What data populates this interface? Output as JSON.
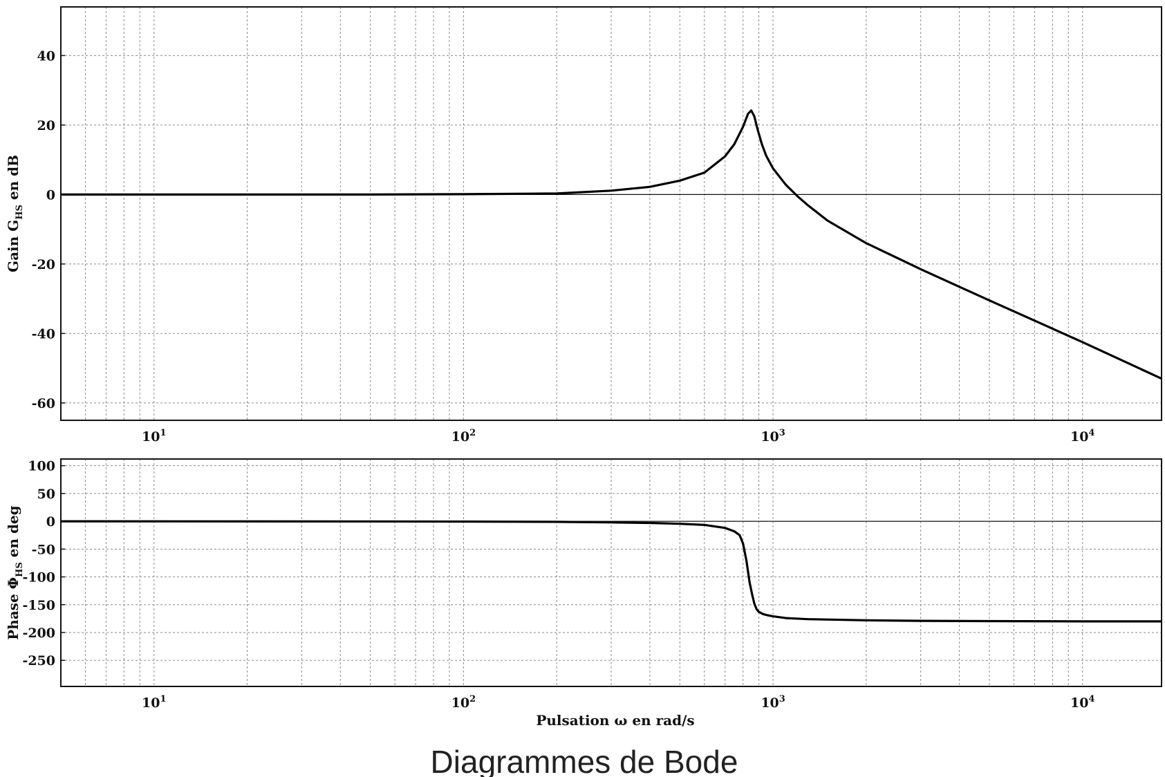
{
  "caption": "Diagrammes de Bode",
  "chart_data": [
    {
      "type": "line",
      "xscale": "log",
      "xlim": [
        5,
        18000
      ],
      "ylim": [
        -65,
        54
      ],
      "yticks": [
        40,
        20,
        0,
        -20,
        -40,
        -60
      ],
      "xticks": [
        {
          "value": 10,
          "base": "10",
          "exp": "1"
        },
        {
          "value": 100,
          "base": "10",
          "exp": "2"
        },
        {
          "value": 1000,
          "base": "10",
          "exp": "3"
        },
        {
          "value": 10000,
          "base": "10",
          "exp": "4"
        }
      ],
      "ylabel": {
        "main": "Gain G",
        "sub": "HS",
        "rest": " en dB"
      },
      "xlabel": "",
      "grid": true,
      "series": [
        {
          "x": [
            5,
            20,
            50,
            100,
            200,
            300,
            400,
            500,
            600,
            700,
            750,
            800,
            830,
            850,
            870,
            890,
            920,
            950,
            1000,
            1100,
            1200,
            1300,
            1500,
            2000,
            3000,
            5000,
            10000,
            18000
          ],
          "y": [
            0,
            0,
            0,
            0.1,
            0.3,
            1.1,
            2.2,
            4.0,
            6.3,
            11.0,
            14.5,
            19.5,
            23.2,
            24.2,
            22.5,
            19.0,
            14.5,
            11.2,
            7.5,
            2.8,
            -0.5,
            -3.2,
            -7.5,
            -14.0,
            -21.5,
            -30.5,
            -42.5,
            -53.0
          ]
        }
      ]
    },
    {
      "type": "line",
      "xscale": "log",
      "xlim": [
        5,
        18000
      ],
      "ylim": [
        -297,
        112
      ],
      "yticks": [
        100,
        50,
        0,
        -50,
        -100,
        -150,
        -200,
        -250
      ],
      "xticks": [
        {
          "value": 10,
          "base": "10",
          "exp": "1"
        },
        {
          "value": 100,
          "base": "10",
          "exp": "2"
        },
        {
          "value": 1000,
          "base": "10",
          "exp": "3"
        },
        {
          "value": 10000,
          "base": "10",
          "exp": "4"
        }
      ],
      "ylabel": {
        "main": "Phase Φ",
        "sub": "HS",
        "rest": " en deg"
      },
      "xlabel": "Pulsation ω en rad/s",
      "grid": true,
      "series": [
        {
          "x": [
            5,
            50,
            100,
            200,
            300,
            400,
            500,
            600,
            700,
            750,
            780,
            800,
            820,
            840,
            855,
            870,
            885,
            900,
            930,
            960,
            1000,
            1100,
            1300,
            2000,
            3000,
            5000,
            10000,
            18000
          ],
          "y": [
            0,
            -0.2,
            -0.5,
            -1,
            -2,
            -3,
            -4.5,
            -6.5,
            -12,
            -18,
            -25,
            -40,
            -70,
            -110,
            -130,
            -148,
            -158,
            -163,
            -167,
            -169,
            -171,
            -174,
            -176,
            -178,
            -179,
            -179.5,
            -180,
            -180
          ]
        }
      ]
    }
  ]
}
